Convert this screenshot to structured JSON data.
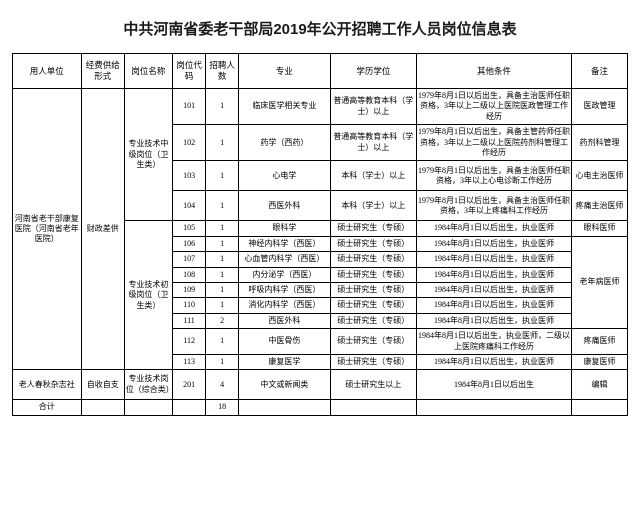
{
  "title": "中共河南省委老干部局2019年公开招聘工作人员岗位信息表",
  "headers": {
    "unit": "用人单位",
    "fund": "经费供给形式",
    "post": "岗位名称",
    "code": "岗位代码",
    "count": "招聘人数",
    "major": "专业",
    "degree": "学历学位",
    "cond": "其他条件",
    "note": "备注"
  },
  "unit1": "河南省老干部康复医院（河南省老年医院）",
  "fund1": "财政差供",
  "post_mid": "专业技术中级岗位（卫生类）",
  "post_jr": "专业技术初级岗位（卫生类）",
  "unit2": "老人春秋杂志社",
  "fund2": "自收自支",
  "post2": "专业技术岗位（综合类）",
  "total_label": "合计",
  "total_count": "18",
  "r": [
    {
      "code": "101",
      "count": "1",
      "major": "临床医学相关专业",
      "degree": "普通高等教育本科（学士）以上",
      "cond": "1979年8月1日以后出生，具备主治医师任职资格，3年以上二级以上医院医政管理工作经历",
      "note": "医政管理"
    },
    {
      "code": "102",
      "count": "1",
      "major": "药学（西药）",
      "degree": "普通高等教育本科（学士）以上",
      "cond": "1979年8月1日以后出生，具备主管药师任职资格，3年以上二级以上医院药剂科管理工作经历",
      "note": "药剂科管理"
    },
    {
      "code": "103",
      "count": "1",
      "major": "心电学",
      "degree": "本科（学士）以上",
      "cond": "1979年8月1日以后出生，具备主治医师任职资格，3年以上心电诊断工作经历",
      "note": "心电主治医师"
    },
    {
      "code": "104",
      "count": "1",
      "major": "西医外科",
      "degree": "本科（学士）以上",
      "cond": "1979年8月1日以后出生，具备主治医师任职资格，3年以上疼痛科工作经历",
      "note": "疼痛主治医师"
    },
    {
      "code": "105",
      "count": "1",
      "major": "眼科学",
      "degree": "硕士研究生（专硕）",
      "cond": "1984年8月1日以后出生，执业医师",
      "note": "眼科医师"
    },
    {
      "code": "106",
      "count": "1",
      "major": "神经内科学（西医）",
      "degree": "硕士研究生（专硕）",
      "cond": "1984年8月1日以后出生，执业医师",
      "note": ""
    },
    {
      "code": "107",
      "count": "1",
      "major": "心血管内科学（西医）",
      "degree": "硕士研究生（专硕）",
      "cond": "1984年8月1日以后出生，执业医师",
      "note": ""
    },
    {
      "code": "108",
      "count": "1",
      "major": "内分泌学（西医）",
      "degree": "硕士研究生（专硕）",
      "cond": "1984年8月1日以后出生，执业医师",
      "note": "老年病医师"
    },
    {
      "code": "109",
      "count": "1",
      "major": "呼吸内科学（西医）",
      "degree": "硕士研究生（专硕）",
      "cond": "1984年8月1日以后出生，执业医师",
      "note": ""
    },
    {
      "code": "110",
      "count": "1",
      "major": "消化内科学（西医）",
      "degree": "硕士研究生（专硕）",
      "cond": "1984年8月1日以后出生，执业医师",
      "note": ""
    },
    {
      "code": "111",
      "count": "2",
      "major": "西医外科",
      "degree": "硕士研究生（专硕）",
      "cond": "1984年8月1日以后出生，执业医师",
      "note": ""
    },
    {
      "code": "112",
      "count": "1",
      "major": "中医骨伤",
      "degree": "硕士研究生（专硕）",
      "cond": "1984年8月1日以后出生，执业医师，二级以上医院疼痛科工作经历",
      "note": "疼痛医师"
    },
    {
      "code": "113",
      "count": "1",
      "major": "康复医学",
      "degree": "硕士研究生（专硕）",
      "cond": "1984年8月1日以后出生，执业医师",
      "note": "康复医师"
    },
    {
      "code": "201",
      "count": "4",
      "major": "中文或新闻类",
      "degree": "硕士研究生以上",
      "cond": "1984年8月1日以后出生",
      "note": "编辑"
    }
  ]
}
